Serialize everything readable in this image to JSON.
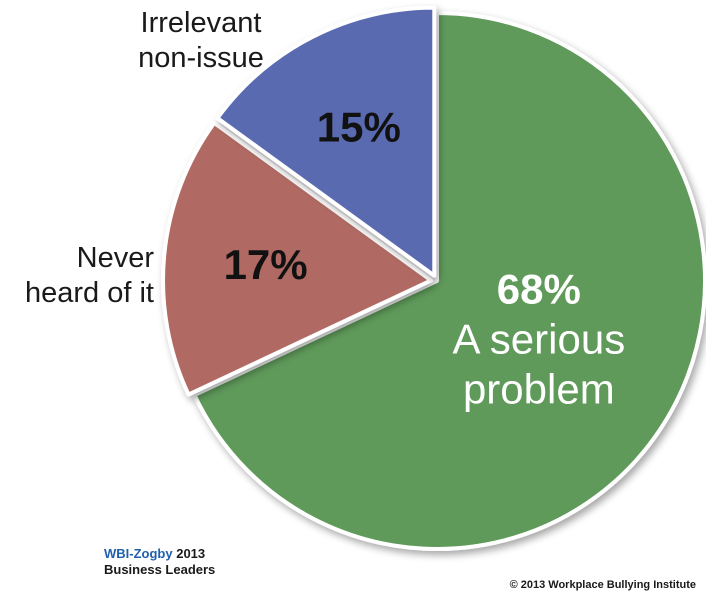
{
  "chart_data": {
    "type": "pie",
    "slices": [
      {
        "label_lines": [
          "A serious",
          "problem"
        ],
        "value": 68,
        "value_label": "68%",
        "color": "#5e9a5a"
      },
      {
        "label_lines": [
          "Never",
          "heard of it"
        ],
        "value": 17,
        "value_label": "17%",
        "color": "#b06a64"
      },
      {
        "label_lines": [
          "Irrelevant",
          "non-issue"
        ],
        "value": 15,
        "value_label": "15%",
        "color": "#5a6bb0"
      }
    ]
  },
  "source": {
    "brand": "WBI-Zogby",
    "year": "2013",
    "line2": "Business Leaders"
  },
  "copyright": "© 2013 Workplace Bullying Institute"
}
